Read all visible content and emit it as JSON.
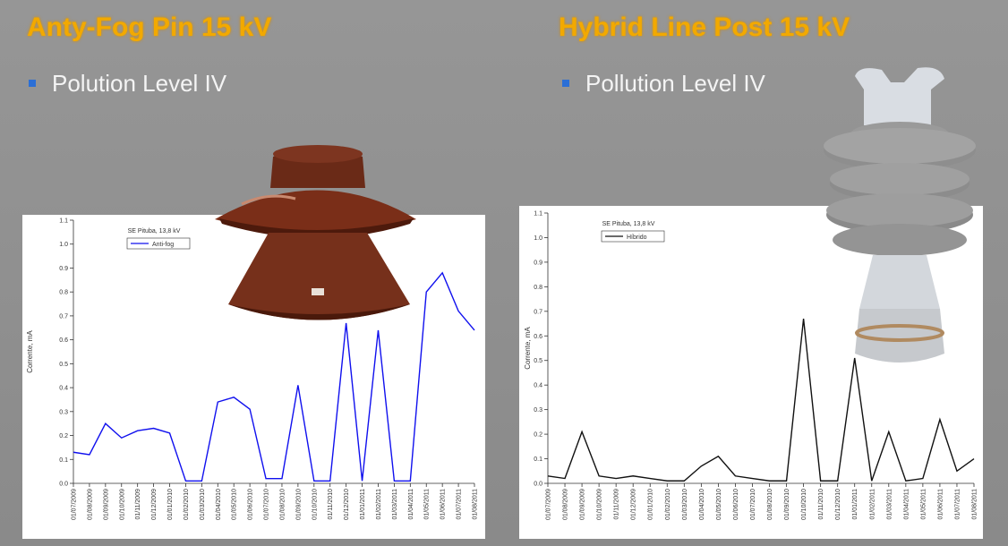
{
  "slide": {
    "left": {
      "title": "Anty-Fog Pin 15 kV",
      "bullet": "Polution Level IV"
    },
    "right": {
      "title": "Hybrid Line Post 15 kV",
      "bullet": "Pollution Level IV"
    }
  },
  "chart_data": [
    {
      "type": "line",
      "y_label": "Corrente, mA",
      "legend_title": "SE Pituba, 13,8 kV",
      "categories": [
        "01/07/2009",
        "01/08/2009",
        "01/09/2009",
        "01/10/2009",
        "01/11/2009",
        "01/12/2009",
        "01/01/2010",
        "01/02/2010",
        "01/03/2010",
        "01/04/2010",
        "01/05/2010",
        "01/06/2010",
        "01/07/2010",
        "01/08/2010",
        "01/09/2010",
        "01/10/2010",
        "01/11/2010",
        "01/12/2010",
        "01/01/2011",
        "01/02/2011",
        "01/03/2011",
        "01/04/2011",
        "01/05/2011",
        "01/06/2011",
        "01/07/2011",
        "01/08/2011"
      ],
      "series": [
        {
          "name": "Anti-fog",
          "color": "#1010ee",
          "values": [
            0.13,
            0.12,
            0.25,
            0.19,
            0.22,
            0.23,
            0.21,
            0.01,
            0.01,
            0.34,
            0.36,
            0.31,
            0.02,
            0.02,
            0.41,
            0.01,
            0.01,
            0.67,
            0.01,
            0.64,
            0.01,
            0.01,
            0.8,
            0.88,
            0.72,
            0.64
          ]
        }
      ],
      "ylim": [
        0,
        1.1
      ],
      "yticks": [
        {
          "value": 0,
          "label": "0.0"
        },
        0.1,
        0.2,
        0.3,
        0.4,
        0.5,
        0.6,
        0.7,
        0.8,
        0.9,
        {
          "value": 1,
          "label": "1.0"
        },
        1.1
      ]
    },
    {
      "type": "line",
      "y_label": "Corrente, mA",
      "legend_title": "SE Pituba, 13,8 kV",
      "categories": [
        "01/07/2009",
        "01/08/2009",
        "01/09/2009",
        "01/10/2009",
        "01/11/2009",
        "01/12/2009",
        "01/01/2010",
        "01/02/2010",
        "01/03/2010",
        "01/04/2010",
        "01/05/2010",
        "01/06/2010",
        "01/07/2010",
        "01/08/2010",
        "01/09/2010",
        "01/10/2010",
        "01/11/2010",
        "01/12/2010",
        "01/01/2011",
        "01/02/2011",
        "01/03/2011",
        "01/04/2011",
        "01/05/2011",
        "01/06/2011",
        "01/07/2011",
        "01/08/2011"
      ],
      "series": [
        {
          "name": "Híbrido",
          "color": "#111111",
          "values": [
            0.03,
            0.02,
            0.21,
            0.03,
            0.02,
            0.03,
            0.02,
            0.01,
            0.01,
            0.07,
            0.11,
            0.03,
            0.02,
            0.01,
            0.01,
            0.67,
            0.01,
            0.01,
            0.51,
            0.01,
            0.21,
            0.01,
            0.02,
            0.26,
            0.05,
            0.1
          ]
        }
      ],
      "ylim": [
        0,
        1.1
      ],
      "yticks": [
        {
          "value": 0,
          "label": "0.0"
        },
        0.1,
        0.2,
        0.3,
        0.4,
        0.5,
        0.6,
        0.7,
        0.8,
        0.9,
        {
          "value": 1,
          "label": "1.0"
        },
        1.1
      ]
    }
  ]
}
